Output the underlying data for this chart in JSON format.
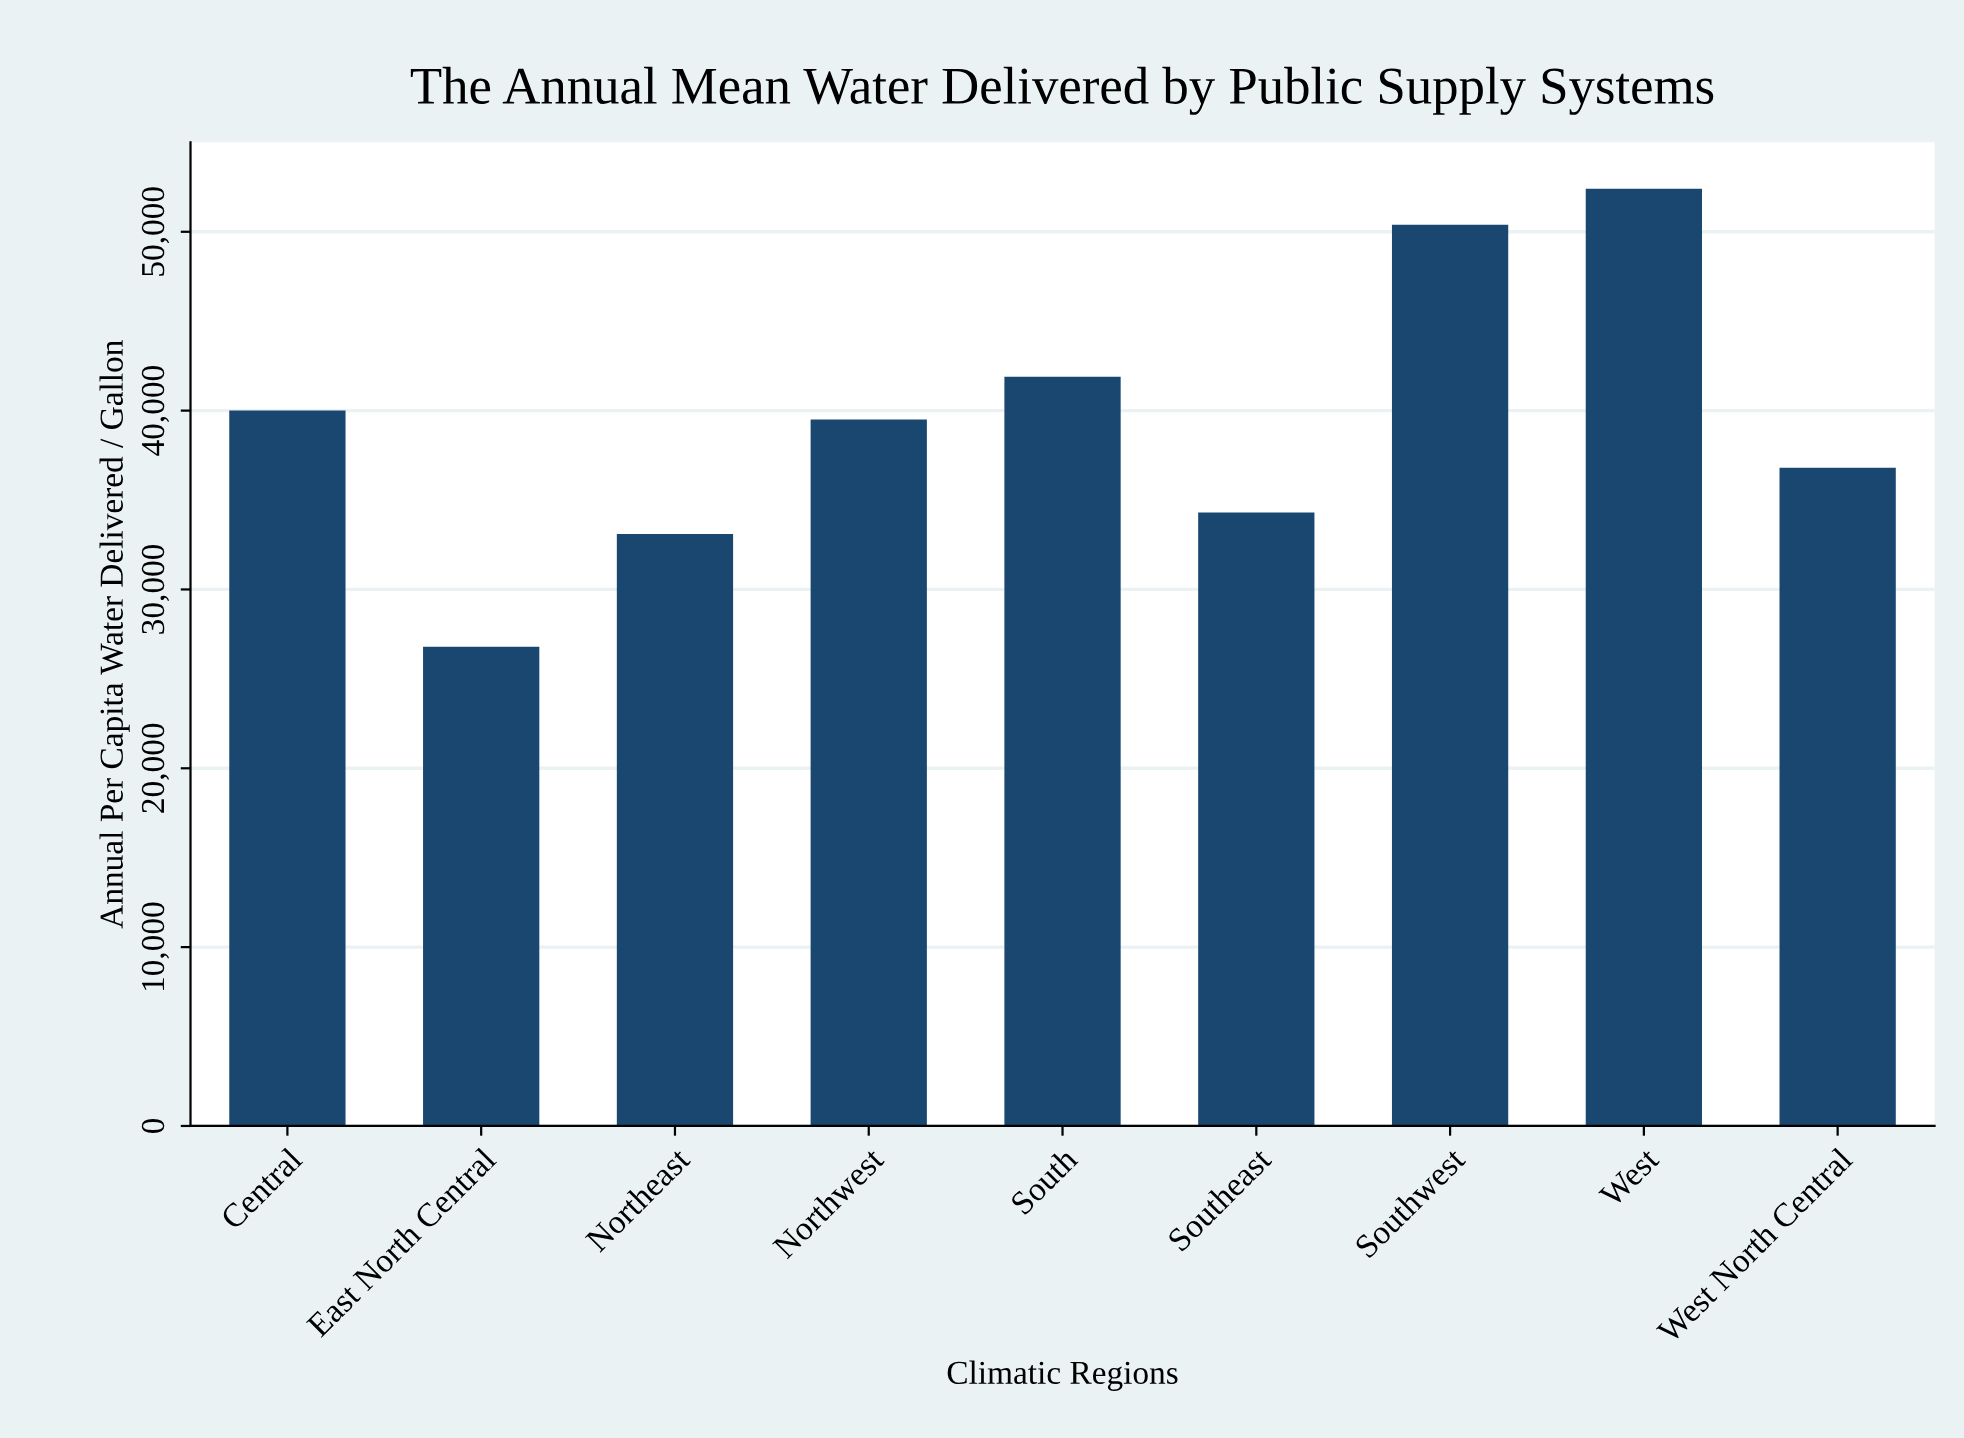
{
  "chart_data": {
    "type": "bar",
    "title": "The Annual Mean Water Delivered by Public Supply Systems",
    "xlabel": "Climatic Regions",
    "ylabel": "Annual Per Capita Water Delivered / Gallon",
    "categories": [
      "Central",
      "East North Central",
      "Northeast",
      "Northwest",
      "South",
      "Southeast",
      "Southwest",
      "West",
      "West North Central"
    ],
    "values": [
      40000,
      26800,
      33100,
      39500,
      41900,
      34300,
      50400,
      52400,
      36800
    ],
    "color": "#1a476f",
    "ylim": [
      0,
      55000
    ],
    "yticks": [
      0,
      {
        "value": 10000,
        "label": "10,000"
      },
      {
        "value": 20000,
        "label": "20,000"
      },
      {
        "value": 30000,
        "label": "30,000"
      },
      {
        "value": 40000,
        "label": "40,000"
      },
      {
        "value": 50000,
        "label": "50,000"
      }
    ],
    "grid": "y"
  }
}
